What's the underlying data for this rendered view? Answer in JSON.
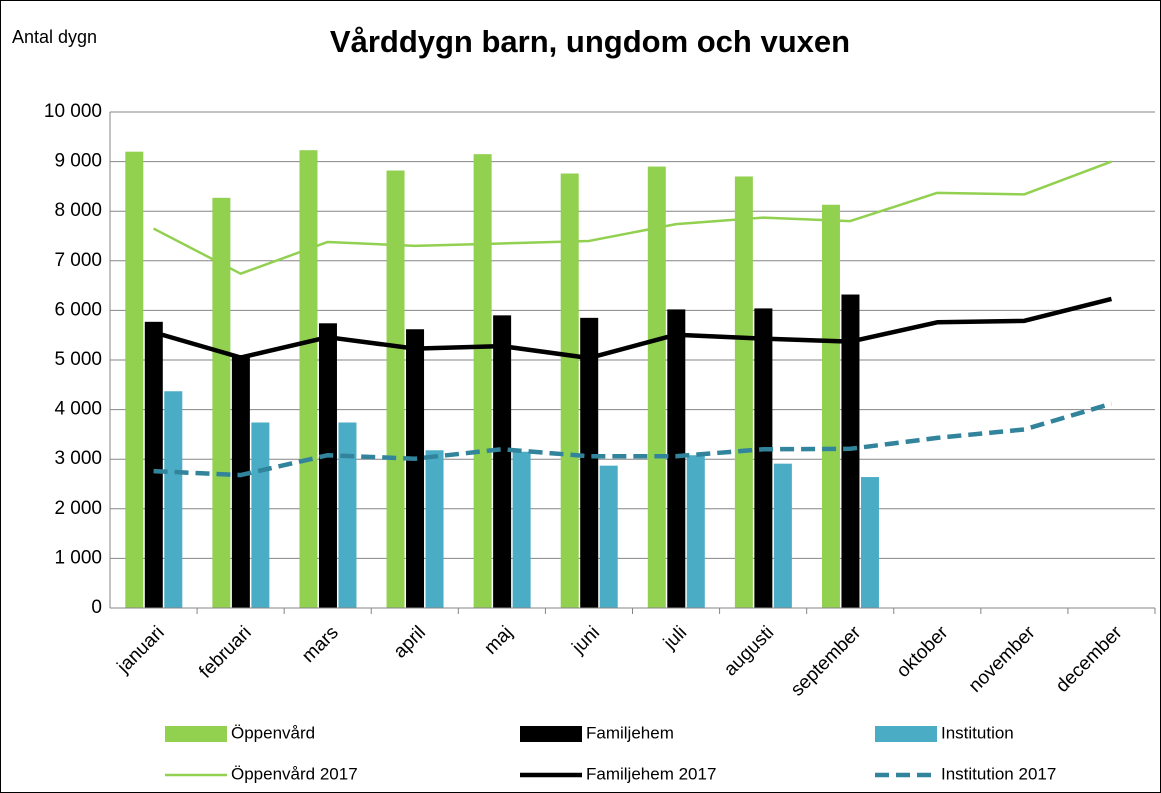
{
  "chart_data": {
    "type": "bar",
    "title": "Vårddygn barn, ungdom och vuxen",
    "y_label": "Antal dygn",
    "categories": [
      "januari",
      "februari",
      "mars",
      "april",
      "maj",
      "juni",
      "juli",
      "augusti",
      "september",
      "oktober",
      "november",
      "december"
    ],
    "series": [
      {
        "name": "Öppenvård",
        "type": "bar",
        "color": "#92d050",
        "values": [
          9200,
          8270,
          9230,
          8820,
          9150,
          8760,
          8900,
          8700,
          8130,
          null,
          null,
          null
        ]
      },
      {
        "name": "Familjehem",
        "type": "bar",
        "color": "#000000",
        "values": [
          5770,
          5100,
          5740,
          5620,
          5900,
          5850,
          6020,
          6040,
          6320,
          null,
          null,
          null
        ]
      },
      {
        "name": "Institution",
        "type": "bar",
        "color": "#4bacc6",
        "values": [
          4370,
          3740,
          3740,
          3180,
          3150,
          2870,
          3080,
          2910,
          2640,
          null,
          null,
          null
        ]
      },
      {
        "name": "Öppenvård 2017",
        "type": "line",
        "style": "solid",
        "weight": "light",
        "color": "#92d050",
        "values": [
          7650,
          6740,
          7380,
          7300,
          7350,
          7400,
          7740,
          7870,
          7800,
          8370,
          8340,
          9000
        ]
      },
      {
        "name": "Familjehem 2017",
        "type": "line",
        "style": "solid",
        "weight": "heavy",
        "color": "#000000",
        "values": [
          5560,
          5050,
          5460,
          5230,
          5280,
          5040,
          5510,
          5430,
          5370,
          5760,
          5790,
          6230
        ]
      },
      {
        "name": "Institution 2017",
        "type": "line",
        "style": "dashed",
        "weight": "heavy",
        "color": "#31849b",
        "values": [
          2760,
          2680,
          3080,
          3010,
          3200,
          3060,
          3060,
          3200,
          3210,
          3430,
          3600,
          4120
        ]
      }
    ],
    "ylim": [
      0,
      10000
    ],
    "yticks": [
      0,
      {
        "value": 1000,
        "label": "1 000"
      },
      {
        "value": 2000,
        "label": "2 000"
      },
      {
        "value": 3000,
        "label": "3 000"
      },
      {
        "value": 4000,
        "label": "4 000"
      },
      {
        "value": 5000,
        "label": "5 000"
      },
      {
        "value": 6000,
        "label": "6 000"
      },
      {
        "value": 7000,
        "label": "7 000"
      },
      {
        "value": 8000,
        "label": "8 000"
      },
      {
        "value": 9000,
        "label": "9 000"
      },
      {
        "value": 10000,
        "label": "10 000"
      }
    ],
    "grid": true,
    "legend": "bottom"
  }
}
